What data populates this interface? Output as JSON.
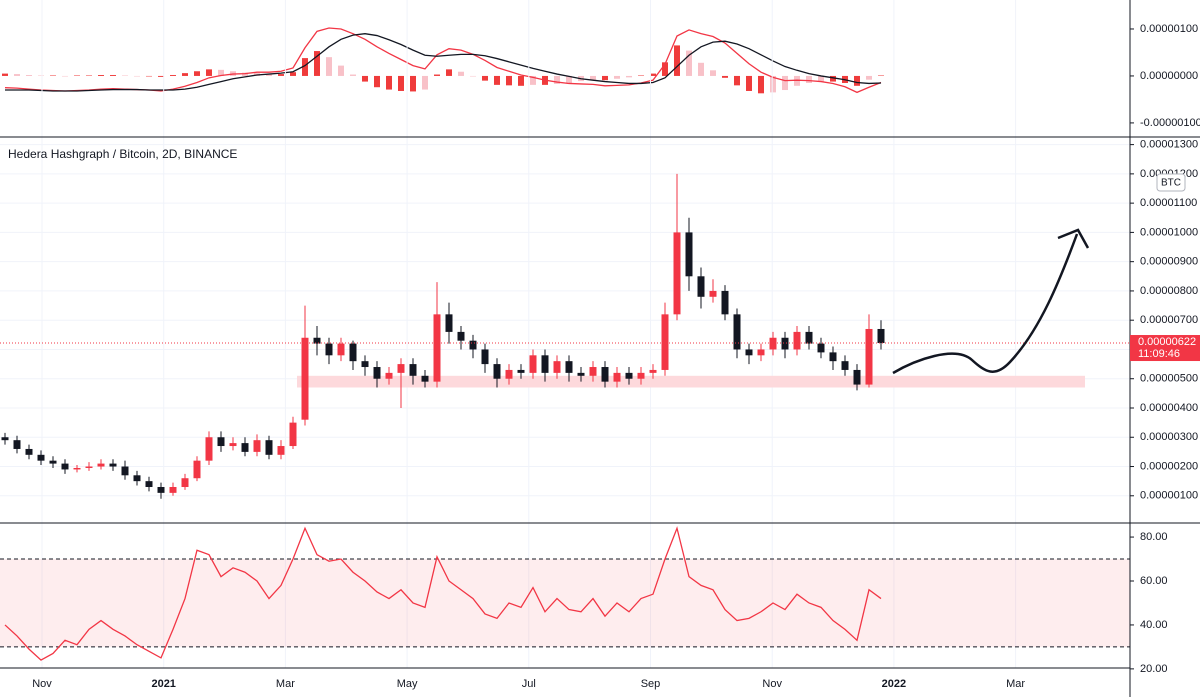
{
  "chart_data": [
    {
      "type": "macd",
      "ylim": [
        -1.3e-06,
        1.617e-06
      ],
      "yticks": [
        {
          "value": 1e-06,
          "label": "0.00000100"
        },
        {
          "value": 0,
          "label": "0.00000000"
        },
        {
          "value": -1e-06,
          "label": "-0.00000100"
        }
      ],
      "macd": {
        "color": "#f23645",
        "values": [
          -2.5e-07,
          -2.6e-07,
          -2.8e-07,
          -3e-07,
          -3.1e-07,
          -3.2e-07,
          -3.1e-07,
          -3e-07,
          -2.8e-07,
          -2.7e-07,
          -2.8e-07,
          -2.9e-07,
          -3e-07,
          -3.2e-07,
          -2.8e-07,
          -2.2e-07,
          -1.4e-07,
          -4e-08,
          1e-08,
          4e-08,
          5e-08,
          8e-08,
          8e-08,
          1e-07,
          1.7e-07,
          6e-07,
          9.5e-07,
          1.02e-06,
          1e-06,
          9e-07,
          7.8e-07,
          6.2e-07,
          4.8e-07,
          3.5e-07,
          2.2e-07,
          1.5e-07,
          4.5e-07,
          5.8e-07,
          5.5e-07,
          4.6e-07,
          3.3e-07,
          1.8e-07,
          1e-07,
          2e-08,
          -3e-08,
          -9e-08,
          -1.3e-07,
          -1.6e-07,
          -1.7e-07,
          -1.8e-07,
          -2.1e-07,
          -2e-07,
          -1.9e-07,
          -1.5e-07,
          -9e-08,
          2.5e-07,
          8.5e-07,
          9.8e-07,
          9e-07,
          8.4e-07,
          7e-07,
          4.8e-07,
          2.6e-07,
          8e-08,
          -3e-08,
          -1e-07,
          -9e-08,
          -1e-07,
          -1.2e-07,
          -1.6e-07,
          -2.3e-07,
          -3.5e-07,
          -2.4e-07,
          -1.4e-07
        ]
      },
      "signal": {
        "color": "#131722",
        "values": [
          -3e-07,
          -3e-07,
          -3e-07,
          -3.1e-07,
          -3.2e-07,
          -3.2e-07,
          -3.2e-07,
          -3.1e-07,
          -3e-07,
          -2.9e-07,
          -2.9e-07,
          -2.9e-07,
          -3e-07,
          -3e-07,
          -3e-07,
          -2.8e-07,
          -2.4e-07,
          -1.8e-07,
          -1.2e-07,
          -6e-08,
          -2e-08,
          2e-08,
          4e-08,
          6e-08,
          9e-08,
          2.2e-07,
          4.2e-07,
          6.2e-07,
          7.8e-07,
          8.7e-07,
          9e-07,
          8.6e-07,
          7.7e-07,
          6.7e-07,
          5.5e-07,
          4.4e-07,
          4.2e-07,
          4.4e-07,
          4.6e-07,
          4.6e-07,
          4.3e-07,
          3.7e-07,
          3e-07,
          2.3e-07,
          1.6e-07,
          1e-07,
          4e-08,
          -1e-08,
          -6e-08,
          -9e-08,
          -1.2e-07,
          -1.4e-07,
          -1.6e-07,
          -1.6e-07,
          -1.4e-07,
          -4e-08,
          2e-07,
          4.4e-07,
          6.2e-07,
          7.2e-07,
          7.4e-07,
          6.8e-07,
          5.8e-07,
          4.5e-07,
          3.2e-07,
          2e-07,
          1.2e-07,
          5e-08,
          0,
          -4e-08,
          -8e-08,
          -1.4e-07,
          -1.6e-07,
          -1.5e-07
        ]
      },
      "histogram": {
        "color_strong": "#ef3b3b",
        "color_weak": "#f8c1c8",
        "values": [
          5e-08,
          4e-08,
          2e-08,
          1e-08,
          1e-08,
          0,
          1e-08,
          1e-08,
          2e-08,
          2e-08,
          1e-08,
          0,
          0,
          -2e-08,
          2e-08,
          6e-08,
          1e-07,
          1.4e-07,
          1.3e-07,
          1e-07,
          7e-08,
          6e-08,
          4e-08,
          4e-08,
          8e-08,
          3.8e-07,
          5.3e-07,
          4e-07,
          2.2e-07,
          3e-08,
          -1.2e-07,
          -2.4e-07,
          -2.9e-07,
          -3.2e-07,
          -3.3e-07,
          -2.9e-07,
          3e-08,
          1.4e-07,
          9e-08,
          0,
          -1e-07,
          -1.9e-07,
          -2e-07,
          -2.1e-07,
          -1.9e-07,
          -1.9e-07,
          -1.7e-07,
          -1.5e-07,
          -1.1e-07,
          -9e-08,
          -9e-08,
          -6e-08,
          -3e-08,
          1e-08,
          5e-08,
          2.9e-07,
          6.5e-07,
          5.4e-07,
          2.8e-07,
          1.2e-07,
          -4e-08,
          -2e-07,
          -3.2e-07,
          -3.7e-07,
          -3.5e-07,
          -3e-07,
          -2.1e-07,
          -1.5e-07,
          -1.2e-07,
          -1.2e-07,
          -1.5e-07,
          -2.1e-07,
          -8e-08,
          1e-08
        ]
      }
    },
    {
      "type": "candlestick",
      "title": "Hedera Hashgraph / Bitcoin, 2D, BINANCE",
      "currency": "BTC",
      "up_color": "#f23645",
      "down_color": "#131722",
      "ylim": [
        7e-08,
        1.326e-05
      ],
      "yticks": [
        {
          "value": 1e-06,
          "label": "0.00000100"
        },
        {
          "value": 2e-06,
          "label": "0.00000200"
        },
        {
          "value": 3e-06,
          "label": "0.00000300"
        },
        {
          "value": 4e-06,
          "label": "0.00000400"
        },
        {
          "value": 5e-06,
          "label": "0.00000500"
        },
        {
          "value": 6e-06,
          "label": "0.00000600"
        },
        {
          "value": 7e-06,
          "label": "0.00000700"
        },
        {
          "value": 8e-06,
          "label": "0.00000800"
        },
        {
          "value": 9e-06,
          "label": "0.00000900"
        },
        {
          "value": 1e-05,
          "label": "0.00001000"
        },
        {
          "value": 1.1e-05,
          "label": "0.00001100"
        },
        {
          "value": 1.2e-05,
          "label": "0.00001200"
        },
        {
          "value": 1.3e-05,
          "label": "0.00001300"
        }
      ],
      "grid": true,
      "x_labels": [
        "Nov",
        "2021",
        "Mar",
        "May",
        "Jul",
        "Sep",
        "Nov",
        "2022",
        "Mar"
      ],
      "open": [
        3e-06,
        2.9e-06,
        2.6e-06,
        2.4e-06,
        2.2e-06,
        2.1e-06,
        1.9e-06,
        1.95e-06,
        2e-06,
        2.1e-06,
        2e-06,
        1.7e-06,
        1.5e-06,
        1.3e-06,
        1.1e-06,
        1.3e-06,
        1.6e-06,
        2.2e-06,
        3e-06,
        2.7e-06,
        2.8e-06,
        2.5e-06,
        2.9e-06,
        2.4e-06,
        2.7e-06,
        3.6e-06,
        6.4e-06,
        6.2e-06,
        5.8e-06,
        6.2e-06,
        5.6e-06,
        5.4e-06,
        5e-06,
        5.2e-06,
        5.5e-06,
        5.1e-06,
        4.9e-06,
        7.2e-06,
        6.6e-06,
        6.3e-06,
        6e-06,
        5.5e-06,
        5e-06,
        5.3e-06,
        5.2e-06,
        5.8e-06,
        5.2e-06,
        5.6e-06,
        5.2e-06,
        5.1e-06,
        5.4e-06,
        4.9e-06,
        5.2e-06,
        5e-06,
        5.2e-06,
        5.3e-06,
        7.2e-06,
        1e-05,
        8.5e-06,
        7.8e-06,
        8e-06,
        7.2e-06,
        6e-06,
        5.8e-06,
        6e-06,
        6.4e-06,
        6e-06,
        6.6e-06,
        6.2e-06,
        5.9e-06,
        5.6e-06,
        5.3e-06,
        4.8e-06,
        6.7e-06
      ],
      "high": [
        3.15e-06,
        3.05e-06,
        2.75e-06,
        2.55e-06,
        2.35e-06,
        2.25e-06,
        2.05e-06,
        2.15e-06,
        2.25e-06,
        2.25e-06,
        2.2e-06,
        1.85e-06,
        1.65e-06,
        1.45e-06,
        1.45e-06,
        1.75e-06,
        2.35e-06,
        3.2e-06,
        3.2e-06,
        3e-06,
        3e-06,
        3.1e-06,
        3.05e-06,
        2.9e-06,
        3.7e-06,
        7.5e-06,
        6.8e-06,
        6.4e-06,
        6.4e-06,
        6.3e-06,
        5.8e-06,
        5.6e-06,
        5.4e-06,
        5.7e-06,
        5.7e-06,
        5.3e-06,
        8.3e-06,
        7.6e-06,
        6.8e-06,
        6.5e-06,
        6.2e-06,
        5.7e-06,
        5.5e-06,
        5.5e-06,
        6e-06,
        6e-06,
        5.8e-06,
        5.8e-06,
        5.4e-06,
        5.6e-06,
        5.6e-06,
        5.4e-06,
        5.4e-06,
        5.4e-06,
        5.5e-06,
        7.6e-06,
        1.2e-05,
        1.05e-05,
        8.8e-06,
        8.4e-06,
        8.2e-06,
        7.4e-06,
        6.2e-06,
        6.2e-06,
        6.6e-06,
        6.6e-06,
        6.8e-06,
        6.8e-06,
        6.4e-06,
        6.1e-06,
        5.8e-06,
        5.5e-06,
        7.2e-06,
        7e-06
      ],
      "low": [
        2.75e-06,
        2.45e-06,
        2.25e-06,
        2.05e-06,
        1.95e-06,
        1.75e-06,
        1.8e-06,
        1.85e-06,
        1.9e-06,
        1.85e-06,
        1.55e-06,
        1.35e-06,
        1.15e-06,
        9e-07,
        1e-06,
        1.2e-06,
        1.5e-06,
        2.05e-06,
        2.5e-06,
        2.55e-06,
        2.35e-06,
        2.35e-06,
        2.25e-06,
        2.25e-06,
        2.6e-06,
        3.4e-06,
        5.8e-06,
        5.5e-06,
        5.6e-06,
        5.3e-06,
        5.1e-06,
        4.7e-06,
        4.8e-06,
        4e-06,
        4.8e-06,
        4.7e-06,
        4.7e-06,
        6.2e-06,
        6e-06,
        5.7e-06,
        5.2e-06,
        4.7e-06,
        4.8e-06,
        5e-06,
        5e-06,
        4.9e-06,
        5e-06,
        4.9e-06,
        4.9e-06,
        4.9e-06,
        4.7e-06,
        4.7e-06,
        4.8e-06,
        4.8e-06,
        5e-06,
        5.1e-06,
        7e-06,
        8e-06,
        7.4e-06,
        7.6e-06,
        7e-06,
        5.7e-06,
        5.5e-06,
        5.6e-06,
        5.8e-06,
        5.7e-06,
        5.8e-06,
        6e-06,
        5.7e-06,
        5.3e-06,
        5.1e-06,
        4.6e-06,
        4.7e-06,
        6e-06
      ],
      "close": [
        2.9e-06,
        2.6e-06,
        2.4e-06,
        2.2e-06,
        2.1e-06,
        1.9e-06,
        1.95e-06,
        2e-06,
        2.1e-06,
        2e-06,
        1.7e-06,
        1.5e-06,
        1.3e-06,
        1.1e-06,
        1.3e-06,
        1.6e-06,
        2.2e-06,
        3e-06,
        2.7e-06,
        2.8e-06,
        2.5e-06,
        2.9e-06,
        2.4e-06,
        2.7e-06,
        3.5e-06,
        6.4e-06,
        6.2e-06,
        5.8e-06,
        6.2e-06,
        5.6e-06,
        5.4e-06,
        5e-06,
        5.2e-06,
        5.5e-06,
        5.1e-06,
        4.9e-06,
        7.2e-06,
        6.6e-06,
        6.3e-06,
        6e-06,
        5.5e-06,
        5e-06,
        5.3e-06,
        5.2e-06,
        5.8e-06,
        5.2e-06,
        5.6e-06,
        5.2e-06,
        5.1e-06,
        5.4e-06,
        4.9e-06,
        5.2e-06,
        5e-06,
        5.2e-06,
        5.3e-06,
        7.2e-06,
        1e-05,
        8.5e-06,
        7.8e-06,
        8e-06,
        7.2e-06,
        6e-06,
        5.8e-06,
        6e-06,
        6.4e-06,
        6e-06,
        6.6e-06,
        6.2e-06,
        5.9e-06,
        5.6e-06,
        5.3e-06,
        4.8e-06,
        6.7e-06,
        6.22e-06
      ],
      "support_zone": {
        "range": [
          4.7e-06,
          5.1e-06
        ],
        "color": "#fdd9dc"
      },
      "last_price": {
        "value": 6.22e-06,
        "label": "0.00000622"
      },
      "countdown": "11:09:46"
    },
    {
      "type": "line",
      "color": "#f23645",
      "ylim": [
        20.4,
        86.4
      ],
      "yticks": [
        {
          "value": 80,
          "label": "80.00"
        },
        {
          "value": 60,
          "label": "60.00"
        },
        {
          "value": 40,
          "label": "40.00"
        },
        {
          "value": 20,
          "label": "20.00"
        }
      ],
      "band": [
        30,
        70
      ],
      "values": [
        40,
        35,
        29,
        24,
        27,
        33,
        31,
        38,
        42,
        38,
        35,
        31,
        28,
        25,
        38,
        52,
        74,
        72,
        62,
        66,
        64,
        60,
        52,
        58,
        70,
        84,
        72,
        69,
        70,
        64,
        60,
        55,
        52,
        56,
        50,
        48,
        71,
        60,
        56,
        52,
        45,
        43,
        50,
        48,
        57,
        46,
        52,
        47,
        46,
        52,
        44,
        50,
        46,
        52,
        54,
        70,
        84,
        62,
        58,
        56,
        47,
        42,
        43,
        46,
        50,
        47,
        54,
        50,
        48,
        42,
        38,
        33,
        56,
        52
      ]
    }
  ]
}
